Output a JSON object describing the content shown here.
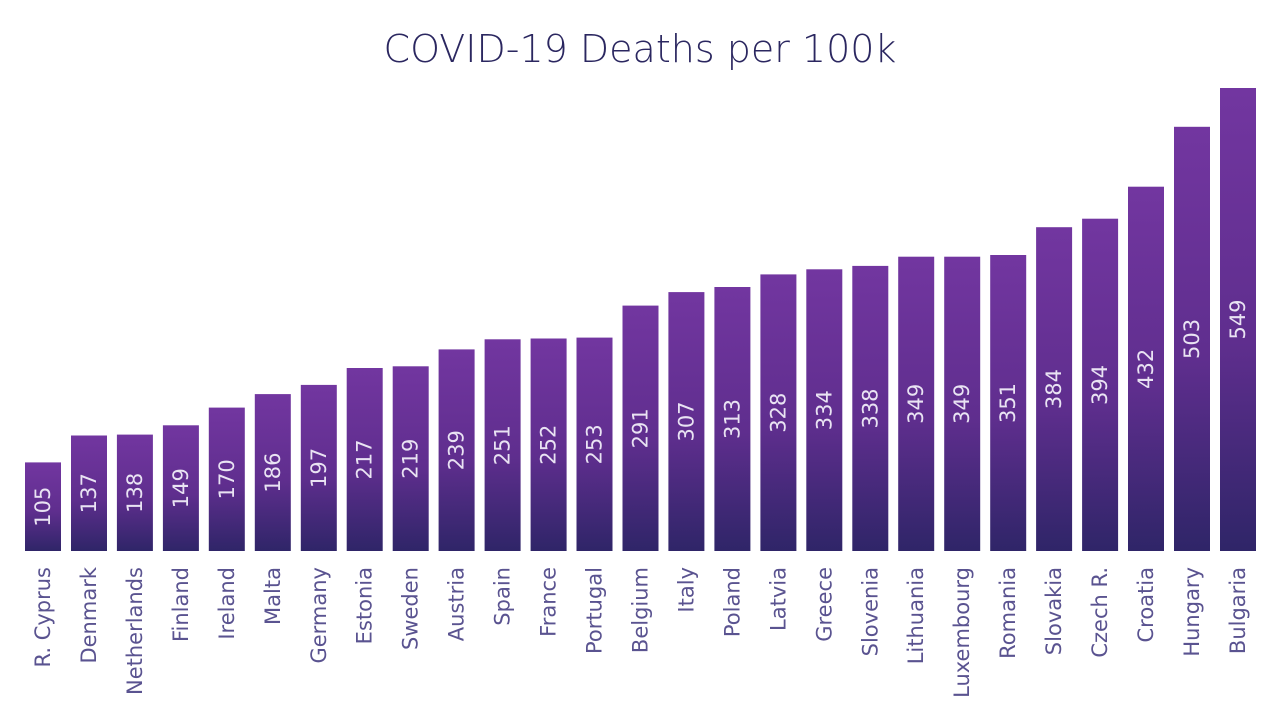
{
  "chart_data": {
    "type": "bar",
    "title": "COVID-19 Deaths per 100k",
    "xlabel": "",
    "ylabel": "",
    "ylim": [
      0,
      549
    ],
    "grid": false,
    "legend": "none",
    "categories": [
      "R. Cyprus",
      "Denmark",
      "Netherlands",
      "Finland",
      "Ireland",
      "Malta",
      "Germany",
      "Estonia",
      "Sweden",
      "Austria",
      "Spain",
      "France",
      "Portugal",
      "Belgium",
      "Italy",
      "Poland",
      "Latvia",
      "Greece",
      "Slovenia",
      "Lithuania",
      "Luxembourg",
      "Romania",
      "Slovakia",
      "Czech R.",
      "Croatia",
      "Hungary",
      "Bulgaria"
    ],
    "values": [
      105,
      137,
      138,
      149,
      170,
      186,
      197,
      217,
      219,
      239,
      251,
      252,
      253,
      291,
      307,
      313,
      328,
      334,
      338,
      349,
      349,
      351,
      384,
      394,
      432,
      503,
      549
    ],
    "data_labels": [
      "105",
      "137",
      "138",
      "149",
      "170",
      "186",
      "197",
      "217",
      "219",
      "239",
      "251",
      "252",
      "253",
      "291",
      "307",
      "313",
      "328",
      "334",
      "338",
      "349",
      "349",
      "351",
      "384",
      "394",
      "432",
      "503",
      "549"
    ],
    "colors": {
      "bar_top": "#7236a0",
      "bar_bottom": "#2f2568",
      "title": "#2b2760",
      "category_label": "#5a5390",
      "value_label": "#e9e3f3"
    }
  }
}
